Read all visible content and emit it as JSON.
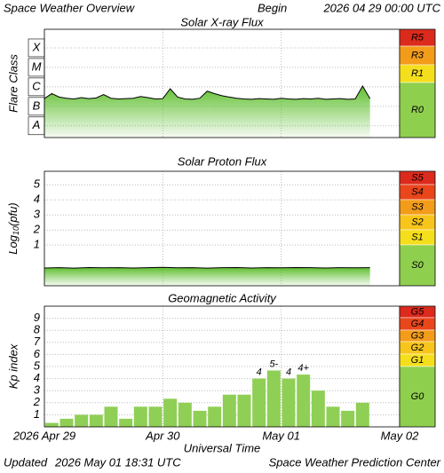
{
  "header": {
    "title": "Space Weather Overview",
    "begin_label": "Begin",
    "begin": "2026 04 29 00:00 UTC"
  },
  "footer": {
    "updated_label": "Updated",
    "updated": "2026 May 01 18:31 UTC",
    "credit": "Space Weather Prediction Center"
  },
  "chart_data": [
    {
      "type": "line",
      "title": "Solar X-ray Flux",
      "ylabel": "Flare Class",
      "log_y": true,
      "ylim": [
        2.5e-09,
        0.0009
      ],
      "yticks": [
        {
          "value": 1e-08,
          "label": "A"
        },
        {
          "value": 1e-07,
          "label": "B"
        },
        {
          "value": 1e-06,
          "label": "C"
        },
        {
          "value": 1e-05,
          "label": "M"
        },
        {
          "value": 0.0001,
          "label": "X"
        }
      ],
      "xlim": [
        0,
        72
      ],
      "xticks": [
        0,
        24,
        48,
        72
      ],
      "grid": true,
      "x": [
        0,
        1.5,
        3,
        4.5,
        6,
        7.5,
        9,
        10.5,
        12,
        13.5,
        15,
        16.5,
        18,
        19.5,
        21,
        22.5,
        24,
        25.5,
        27,
        28.5,
        30,
        31.5,
        33,
        34.5,
        36,
        37.5,
        39,
        40.5,
        42,
        43.5,
        45,
        46.5,
        48,
        49.5,
        51,
        52.5,
        54,
        55.5,
        57,
        58.5,
        60,
        61.5,
        63,
        64.5,
        66
      ],
      "series": [
        {
          "color": "#000000",
          "fill": "#5fbf2f",
          "values": [
            2.5e-07,
            4.5e-07,
            3e-07,
            2.6e-07,
            2.4e-07,
            2.8e-07,
            2.5e-07,
            2.7e-07,
            4e-07,
            2.6e-07,
            2.4e-07,
            2.5e-07,
            2.6e-07,
            3.2e-07,
            2.8e-07,
            2.4e-07,
            2.5e-07,
            8e-07,
            3e-07,
            2.4e-07,
            2.3e-07,
            2.6e-07,
            6e-07,
            4.5e-07,
            3.5e-07,
            3e-07,
            2.6e-07,
            2.4e-07,
            2.3e-07,
            2.5e-07,
            2.4e-07,
            2.3e-07,
            2.6e-07,
            2.4e-07,
            2.3e-07,
            2.5e-07,
            2.4e-07,
            2.6e-07,
            2.3e-07,
            2.4e-07,
            2.5e-07,
            2.3e-07,
            2.4e-07,
            1.1e-06,
            2.5e-07
          ]
        }
      ],
      "scale": [
        {
          "label": "R5",
          "color": "#dc2a1c"
        },
        {
          "label": "R3",
          "color": "#f39c1a"
        },
        {
          "label": "R1",
          "color": "#f5df1c"
        },
        {
          "label": "R0",
          "color": "#8fcf4e"
        }
      ]
    },
    {
      "type": "line",
      "title": "Solar Proton Flux",
      "ylabel": {
        "base": "Log",
        "sub": "10",
        "unit": "(pfu)"
      },
      "log_y": false,
      "ylim": [
        -1.7,
        5.9
      ],
      "yticks": [
        1,
        2,
        3,
        4,
        5
      ],
      "xlim": [
        0,
        72
      ],
      "xticks": [
        0,
        24,
        48,
        72
      ],
      "grid": true,
      "x": [
        0,
        3,
        6,
        9,
        12,
        15,
        18,
        21,
        24,
        27,
        30,
        33,
        36,
        39,
        42,
        45,
        48,
        51,
        54,
        57,
        60,
        63,
        66
      ],
      "series": [
        {
          "color": "#000000",
          "fill": "#5fbf2f",
          "values": [
            -0.52,
            -0.5,
            -0.53,
            -0.49,
            -0.51,
            -0.5,
            -0.52,
            -0.5,
            -0.48,
            -0.51,
            -0.5,
            -0.53,
            -0.5,
            -0.49,
            -0.52,
            -0.5,
            -0.51,
            -0.49,
            -0.5,
            -0.52,
            -0.5,
            -0.51,
            -0.5
          ]
        }
      ],
      "scale": [
        {
          "label": "S5",
          "color": "#dc2a1c"
        },
        {
          "label": "S4",
          "color": "#e9461c"
        },
        {
          "label": "S3",
          "color": "#f39c1a"
        },
        {
          "label": "S2",
          "color": "#f7c51b"
        },
        {
          "label": "S1",
          "color": "#f5df1c"
        },
        {
          "label": "S0",
          "color": "#8fcf4e"
        }
      ]
    },
    {
      "type": "bar",
      "title": "Geomagnetic Activity",
      "ylabel": "Kp index",
      "xlabel": "Universal Time",
      "ylim": [
        0,
        10
      ],
      "yticks": [
        1,
        2,
        3,
        4,
        5,
        6,
        7,
        8,
        9
      ],
      "xlim": [
        0,
        72
      ],
      "xticks": [
        {
          "value": 0,
          "label": "2026 Apr 29"
        },
        {
          "value": 24,
          "label": "Apr 30"
        },
        {
          "value": 48,
          "label": "May 01"
        },
        {
          "value": 72,
          "label": "May 02"
        }
      ],
      "grid": true,
      "bar_width": 3,
      "color": "#8fcf55",
      "x": [
        1.5,
        4.5,
        7.5,
        10.5,
        13.5,
        16.5,
        19.5,
        22.5,
        25.5,
        28.5,
        31.5,
        34.5,
        37.5,
        40.5,
        43.5,
        46.5,
        49.5,
        52.5,
        55.5,
        58.5,
        61.5,
        64.5
      ],
      "values": [
        0.33,
        0.67,
        1,
        1,
        1.67,
        0.67,
        1.67,
        1.67,
        2.33,
        2,
        1.33,
        1.67,
        2.67,
        2.67,
        4,
        4.67,
        4,
        4.33,
        3,
        1.67,
        1.33,
        2
      ],
      "value_labels": [
        null,
        null,
        null,
        null,
        null,
        null,
        null,
        null,
        null,
        null,
        null,
        null,
        null,
        null,
        "4",
        "5-",
        "4",
        "4+",
        null,
        null,
        null,
        null
      ],
      "scale": [
        {
          "label": "G5",
          "color": "#dc2a1c"
        },
        {
          "label": "G4",
          "color": "#e9461c"
        },
        {
          "label": "G3",
          "color": "#f39c1a"
        },
        {
          "label": "G2",
          "color": "#f7c51b"
        },
        {
          "label": "G1",
          "color": "#f5df1c"
        },
        {
          "label": "G0",
          "color": "#8fcf4e"
        }
      ]
    }
  ]
}
